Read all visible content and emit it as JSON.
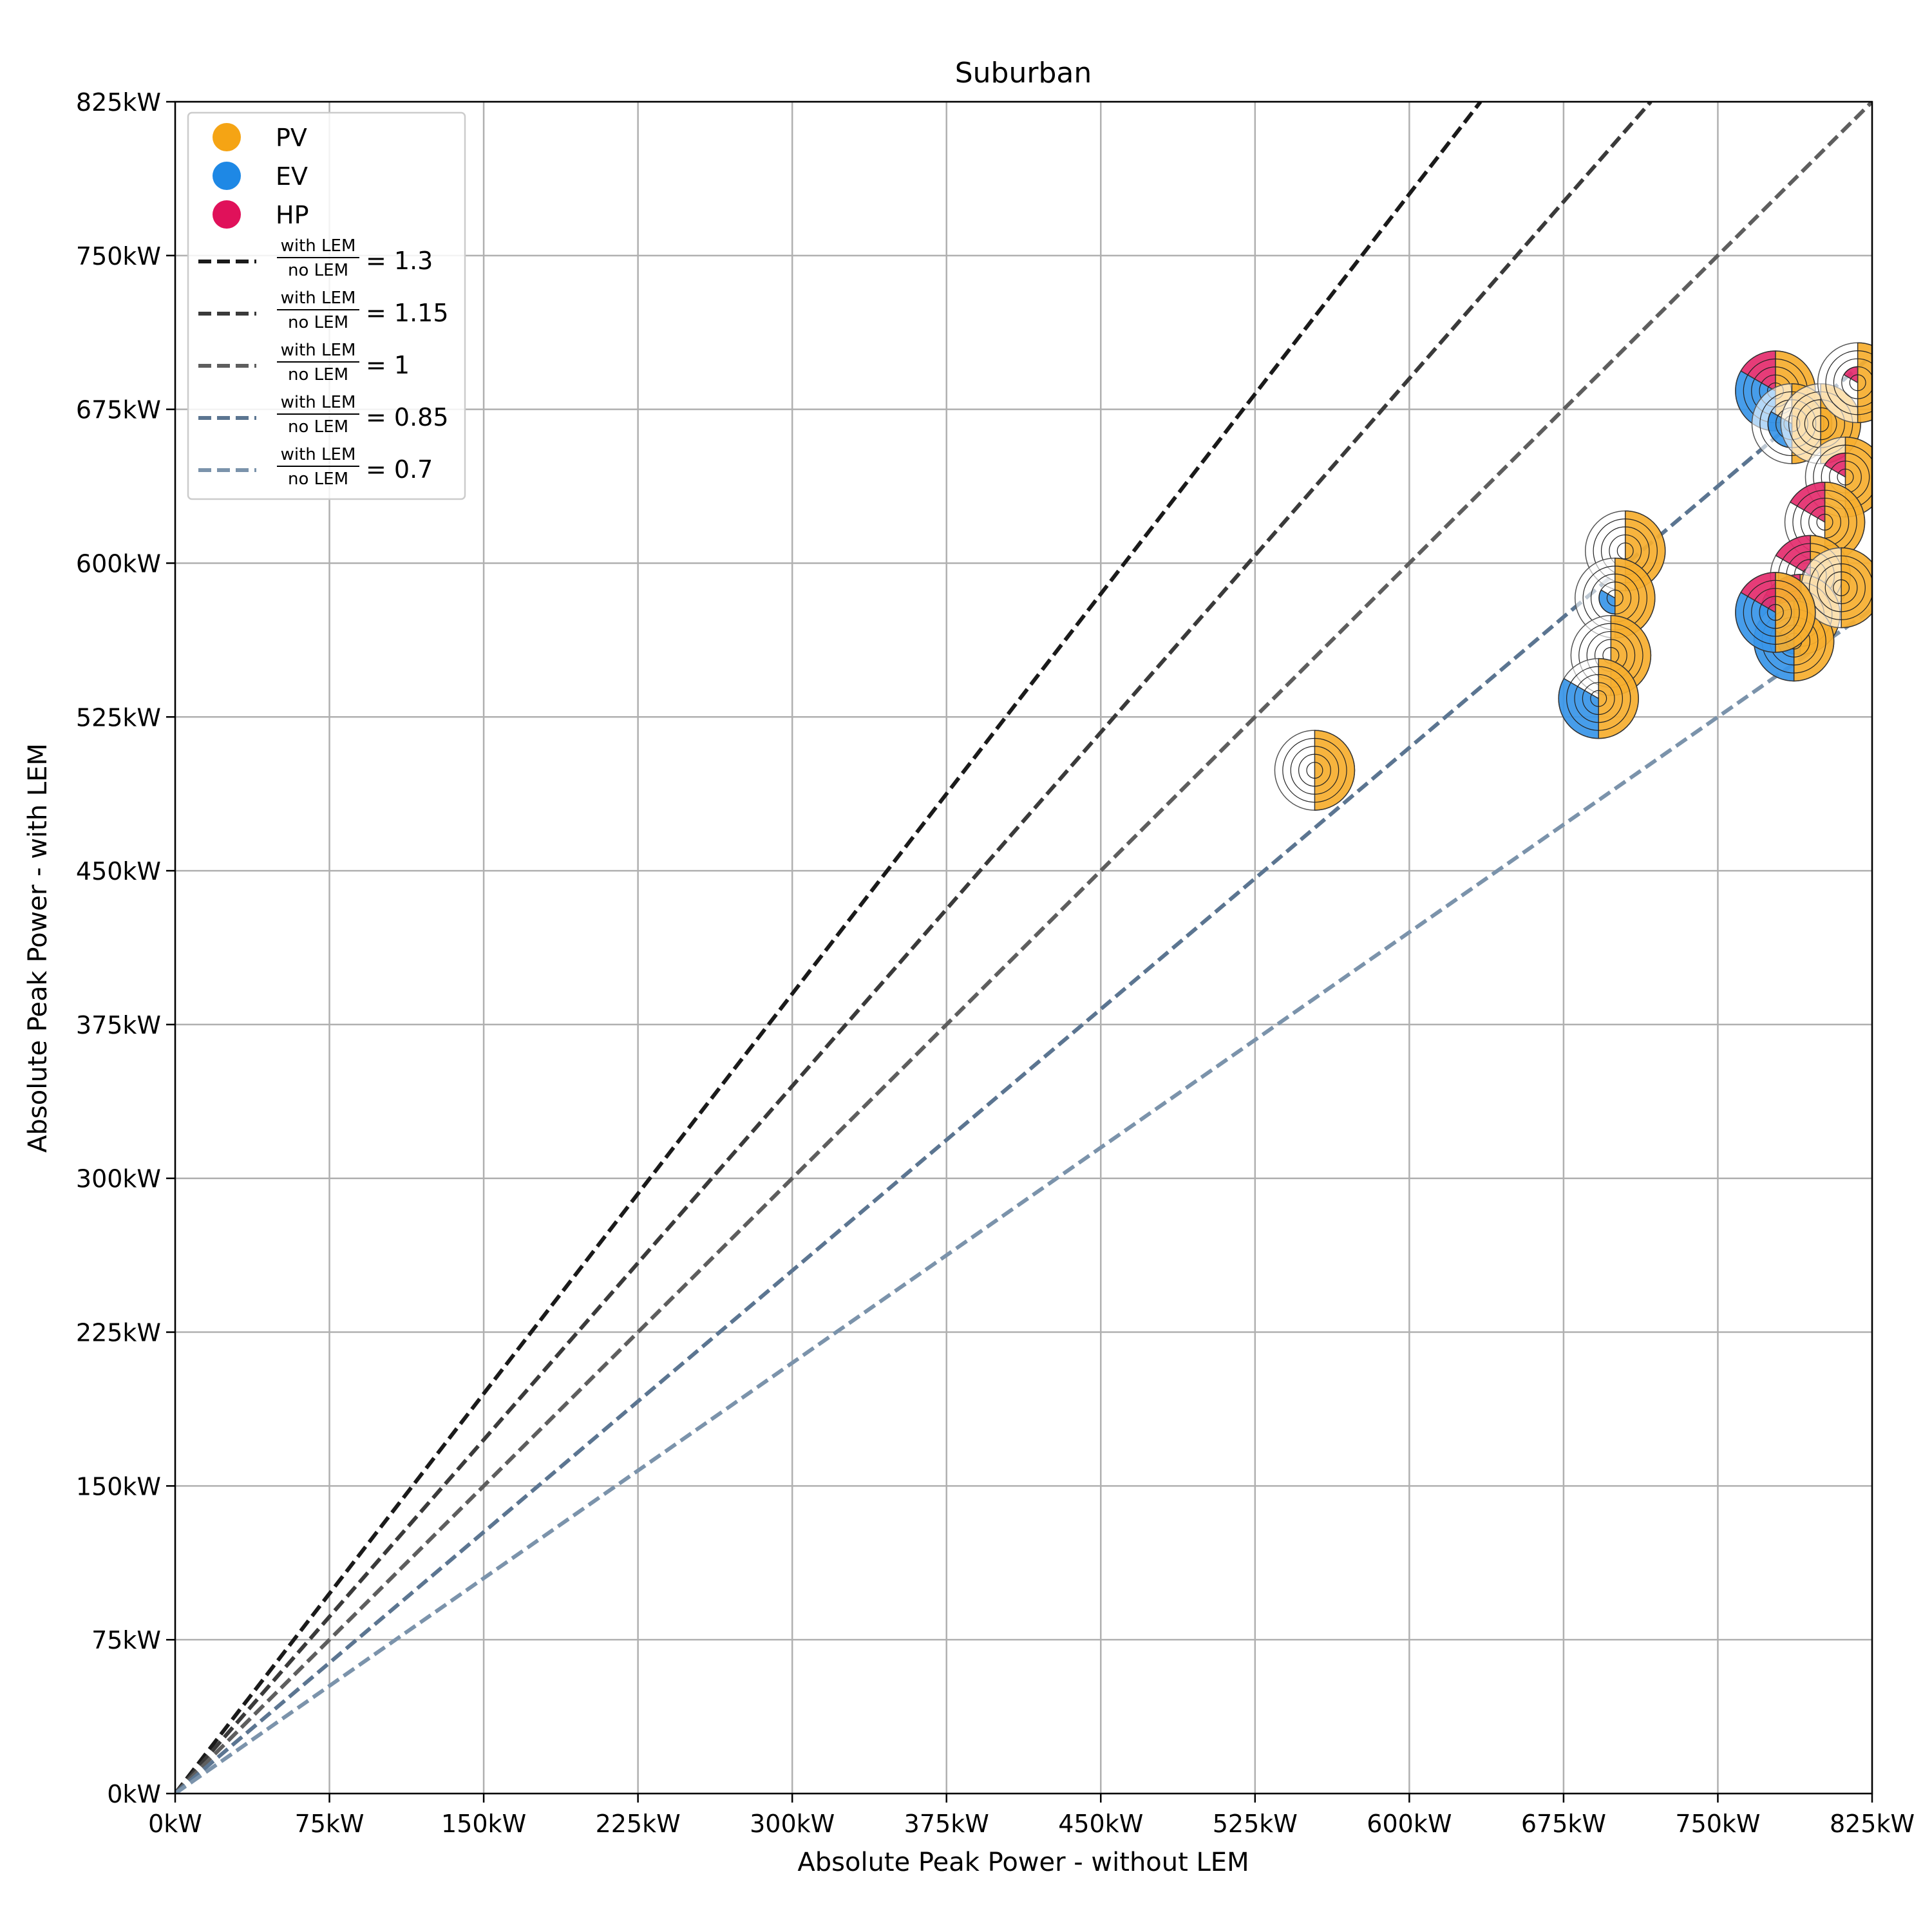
{
  "chart_data": {
    "type": "scatter",
    "title": "Suburban",
    "xlabel": "Absolute Peak Power - without LEM",
    "ylabel": "Absolute Peak Power - with LEM",
    "xlim": [
      0,
      825
    ],
    "ylim": [
      0,
      825
    ],
    "unit": "kW",
    "ticks": [
      "0kW",
      "75kW",
      "150kW",
      "225kW",
      "300kW",
      "375kW",
      "450kW",
      "525kW",
      "600kW",
      "675kW",
      "750kW",
      "825kW"
    ],
    "tick_values": [
      0,
      75,
      150,
      225,
      300,
      375,
      450,
      525,
      600,
      675,
      750,
      825
    ],
    "grid": true,
    "legend_position": "top-left",
    "colors": {
      "PV": "#f5a414",
      "EV": "#1e88e5",
      "HP": "#e0115a"
    },
    "legend": {
      "markers": [
        "PV",
        "EV",
        "HP"
      ],
      "ratio_numerator": "with LEM",
      "ratio_denominator": "no LEM"
    },
    "ratio_lines": [
      {
        "label": "= 1.3",
        "ratio": 1.3,
        "color": "#1a1a1a"
      },
      {
        "label": "= 1.15",
        "ratio": 1.15,
        "color": "#3a3a3a"
      },
      {
        "label": "= 1",
        "ratio": 1.0,
        "color": "#5e5e5e"
      },
      {
        "label": "= 0.85",
        "ratio": 0.85,
        "color": "#5b7591"
      },
      {
        "label": "= 0.7",
        "ratio": 0.7,
        "color": "#7b93ab"
      }
    ],
    "points": [
      {
        "x": 554,
        "y": 499,
        "PV": 1,
        "EV": 0,
        "HP": 0
      },
      {
        "x": 705,
        "y": 606,
        "PV": 1,
        "EV": 0,
        "HP": 0
      },
      {
        "x": 700,
        "y": 583,
        "PV": 1,
        "EV": 0.4,
        "HP": 0
      },
      {
        "x": 698,
        "y": 555,
        "PV": 1,
        "EV": 0,
        "HP": 0
      },
      {
        "x": 692,
        "y": 534,
        "PV": 1,
        "EV": 1,
        "HP": 0
      },
      {
        "x": 778,
        "y": 684,
        "PV": 1,
        "EV": 1,
        "HP": 1
      },
      {
        "x": 786,
        "y": 668,
        "PV": 1,
        "EV": 0.6,
        "HP": 0
      },
      {
        "x": 800,
        "y": 668,
        "PV": 1,
        "EV": 0,
        "HP": 0
      },
      {
        "x": 818,
        "y": 688,
        "PV": 1,
        "EV": 0,
        "HP": 0.4
      },
      {
        "x": 812,
        "y": 642,
        "PV": 1,
        "EV": 0,
        "HP": 0.6
      },
      {
        "x": 802,
        "y": 620,
        "PV": 1,
        "EV": 0,
        "HP": 1
      },
      {
        "x": 795,
        "y": 594,
        "PV": 1,
        "EV": 0,
        "HP": 1
      },
      {
        "x": 790,
        "y": 575,
        "PV": 1,
        "EV": 1,
        "HP": 1
      },
      {
        "x": 787,
        "y": 562,
        "PV": 1,
        "EV": 1,
        "HP": 0
      },
      {
        "x": 810,
        "y": 588,
        "PV": 1,
        "EV": 0,
        "HP": 0
      },
      {
        "x": 778,
        "y": 576,
        "PV": 1,
        "EV": 1,
        "HP": 1
      }
    ]
  }
}
